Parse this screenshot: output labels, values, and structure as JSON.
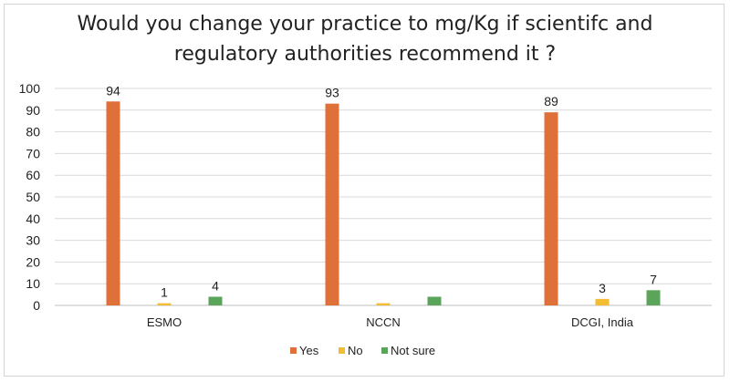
{
  "chart_data": {
    "type": "bar",
    "title_lines": [
      "Would you change your practice to mg/Kg if scientifc and",
      "regulatory authorities recommend it ?"
    ],
    "categories": [
      "ESMO",
      "NCCN",
      "DCGI, India"
    ],
    "series": [
      {
        "name": "Yes",
        "values": [
          94,
          93,
          89
        ],
        "color": "#e0703a",
        "labels": [
          "94",
          "93",
          "89"
        ]
      },
      {
        "name": "No",
        "values": [
          1,
          1,
          3
        ],
        "color": "#f2bd33",
        "labels": [
          "1",
          "",
          "3"
        ]
      },
      {
        "name": "Not sure",
        "values": [
          4,
          4,
          7
        ],
        "color": "#5aa55a",
        "labels": [
          "4",
          "",
          "7"
        ]
      }
    ],
    "yticks": [
      "0",
      "10",
      "20",
      "30",
      "40",
      "50",
      "60",
      "70",
      "80",
      "90",
      "100"
    ],
    "ylim": [
      0,
      100
    ],
    "grid": true,
    "legend_position": "bottom"
  }
}
